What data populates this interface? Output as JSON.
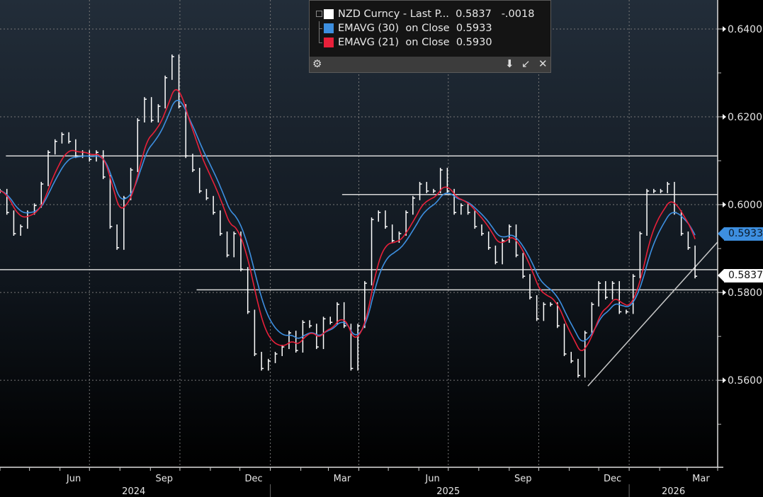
{
  "legend": {
    "rows": [
      {
        "label": "NZD Curncy - Last P...",
        "value": "0.5837",
        "change": "-.0018",
        "color": "#ffffff"
      },
      {
        "label": "EMAVG (30)  on Close",
        "value": "0.5933",
        "color": "#3d8fe0"
      },
      {
        "label": "EMAVG (21)  on Close",
        "value": "0.5930",
        "color": "#e8203a"
      }
    ],
    "icons": [
      "gear-icon",
      "pin-icon",
      "minimize-icon",
      "close-icon"
    ]
  },
  "price_labels": {
    "ema30": "0.5933",
    "last": "0.5837"
  },
  "chart_data": {
    "type": "bar",
    "title": "",
    "series": [
      {
        "name": "NZD Curncy - Last Price",
        "color": "#ffffff"
      },
      {
        "name": "EMAVG (30) on Close",
        "period": 30,
        "color": "#3d8fe0"
      },
      {
        "name": "EMAVG (21) on Close",
        "period": 21,
        "color": "#e8203a"
      }
    ],
    "xlim": [
      "2024-04-01",
      "2026-04-01"
    ],
    "ylim": [
      0.5402,
      0.6466
    ],
    "y_ticks": [
      "0.6400",
      "0.6200",
      "0.6000",
      "0.5800",
      "0.5600"
    ],
    "y_tick_values": [
      0.64,
      0.62,
      0.6,
      0.58,
      0.56
    ],
    "x_labels": [
      {
        "label": "Jun",
        "date": "2024-06-15"
      },
      {
        "label": "Sep",
        "date": "2024-09-15"
      },
      {
        "label": "Dec",
        "date": "2024-12-15"
      },
      {
        "label": "Mar",
        "date": "2025-03-15"
      },
      {
        "label": "Jun",
        "date": "2025-06-15"
      },
      {
        "label": "Sep",
        "date": "2025-09-15"
      },
      {
        "label": "Dec",
        "date": "2025-12-15"
      },
      {
        "label": "Mar",
        "date": "2026-03-15"
      }
    ],
    "year_labels": [
      {
        "label": "2024",
        "date": "2024-08-15"
      },
      {
        "label": "2025",
        "date": "2025-07-01"
      },
      {
        "label": "2026",
        "date": "2026-02-15"
      }
    ],
    "grid": true,
    "dates": [
      "2024-04-01",
      "2024-04-08",
      "2024-04-15",
      "2024-04-22",
      "2024-04-29",
      "2024-05-06",
      "2024-05-13",
      "2024-05-20",
      "2024-05-27",
      "2024-06-03",
      "2024-06-10",
      "2024-06-17",
      "2024-06-24",
      "2024-07-01",
      "2024-07-08",
      "2024-07-15",
      "2024-07-22",
      "2024-07-29",
      "2024-08-05",
      "2024-08-12",
      "2024-08-19",
      "2024-08-26",
      "2024-09-02",
      "2024-09-09",
      "2024-09-16",
      "2024-09-23",
      "2024-09-30",
      "2024-10-07",
      "2024-10-14",
      "2024-10-21",
      "2024-10-28",
      "2024-11-04",
      "2024-11-11",
      "2024-11-18",
      "2024-11-25",
      "2024-12-02",
      "2024-12-09",
      "2024-12-16",
      "2024-12-23",
      "2024-12-30",
      "2025-01-06",
      "2025-01-13",
      "2025-01-20",
      "2025-01-27",
      "2025-02-03",
      "2025-02-10",
      "2025-02-17",
      "2025-02-24",
      "2025-03-03",
      "2025-03-10",
      "2025-03-17",
      "2025-03-24",
      "2025-03-31",
      "2025-04-07",
      "2025-04-14",
      "2025-04-21",
      "2025-04-28",
      "2025-05-05",
      "2025-05-12",
      "2025-05-19",
      "2025-05-26",
      "2025-06-02",
      "2025-06-09",
      "2025-06-16",
      "2025-06-23",
      "2025-06-30",
      "2025-07-07",
      "2025-07-14",
      "2025-07-21",
      "2025-07-28",
      "2025-08-04",
      "2025-08-11",
      "2025-08-18",
      "2025-08-25",
      "2025-09-01",
      "2025-09-08",
      "2025-09-15",
      "2025-09-22",
      "2025-09-29",
      "2025-10-06",
      "2025-10-13",
      "2025-10-20",
      "2025-10-27",
      "2025-11-03",
      "2025-11-10",
      "2025-11-17",
      "2025-11-24",
      "2025-12-01",
      "2025-12-08",
      "2025-12-15",
      "2025-12-22",
      "2025-12-29",
      "2026-01-05",
      "2026-01-12",
      "2026-01-19",
      "2026-01-26",
      "2026-02-02",
      "2026-02-09",
      "2026-02-16",
      "2026-02-23",
      "2026-03-02",
      "2026-03-09"
    ],
    "close": [
      0.6031,
      0.5982,
      0.5934,
      0.595,
      0.5982,
      0.5998,
      0.6047,
      0.6119,
      0.6144,
      0.616,
      0.6144,
      0.6111,
      0.6119,
      0.6103,
      0.6119,
      0.6063,
      0.595,
      0.5902,
      0.6015,
      0.6079,
      0.6192,
      0.624,
      0.6192,
      0.6224,
      0.6289,
      0.6337,
      0.6224,
      0.6111,
      0.6079,
      0.6031,
      0.6015,
      0.5982,
      0.5934,
      0.5885,
      0.5934,
      0.5853,
      0.5756,
      0.566,
      0.5627,
      0.5644,
      0.566,
      0.5676,
      0.5708,
      0.5668,
      0.5732,
      0.5724,
      0.5676,
      0.574,
      0.5732,
      0.5773,
      0.5724,
      0.5627,
      0.5724,
      0.5821,
      0.5966,
      0.5982,
      0.595,
      0.5918,
      0.5934,
      0.5982,
      0.6015,
      0.6047,
      0.6031,
      0.6031,
      0.6079,
      0.6031,
      0.5982,
      0.5998,
      0.5982,
      0.595,
      0.5934,
      0.5902,
      0.5869,
      0.5918,
      0.595,
      0.5885,
      0.5837,
      0.5789,
      0.574,
      0.5773,
      0.5773,
      0.5724,
      0.566,
      0.5644,
      0.5611,
      0.5708,
      0.5773,
      0.5821,
      0.5789,
      0.5821,
      0.5756,
      0.5756,
      0.5837,
      0.5934,
      0.6031,
      0.6031,
      0.6031,
      0.6047,
      0.5982,
      0.5934,
      0.5902,
      0.5837
    ],
    "annotations": {
      "horizontal_lines": [
        {
          "level": 0.6111,
          "from": "2024-04-07"
        },
        {
          "level": 0.6023,
          "from": "2025-03-15"
        },
        {
          "level": 0.5852,
          "from": "2024-04-01"
        },
        {
          "level": 0.5806,
          "from": "2024-10-18"
        }
      ],
      "trendline": {
        "from": [
          "2025-11-20",
          0.5587
        ],
        "to": [
          "2026-04-01",
          0.5915
        ]
      }
    }
  }
}
